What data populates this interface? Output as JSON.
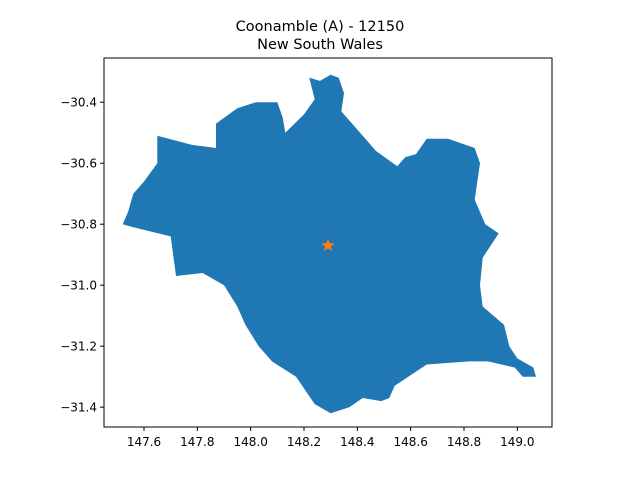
{
  "chart_data": {
    "type": "map",
    "title_line1": "Coonamble (A) - 12150",
    "title_line2": "New South Wales",
    "xlabel": "",
    "ylabel": "",
    "xlim": [
      147.45,
      149.13
    ],
    "ylim": [
      -31.465,
      -30.255
    ],
    "x_ticks": [
      147.6,
      147.8,
      148.0,
      148.2,
      148.4,
      148.6,
      148.8,
      149.0
    ],
    "x_tick_labels": [
      "147.6",
      "147.8",
      "148.0",
      "148.2",
      "148.4",
      "148.6",
      "148.8",
      "149.0"
    ],
    "y_ticks": [
      -30.4,
      -30.6,
      -30.8,
      -31.0,
      -31.2,
      -31.4
    ],
    "y_tick_labels": [
      "−30.4",
      "−30.6",
      "−30.8",
      "−31.0",
      "−31.2",
      "−31.4"
    ],
    "grid": false,
    "region_color": "#1f77b4",
    "marker_color": "#ff7f0e",
    "marker": {
      "symbol": "star",
      "lon": 148.29,
      "lat": -30.87
    },
    "boundary": [
      [
        148.22,
        -30.32
      ],
      [
        148.26,
        -30.33
      ],
      [
        148.3,
        -30.31
      ],
      [
        148.33,
        -30.32
      ],
      [
        148.35,
        -30.37
      ],
      [
        148.34,
        -30.43
      ],
      [
        148.37,
        -30.46
      ],
      [
        148.42,
        -30.51
      ],
      [
        148.47,
        -30.56
      ],
      [
        148.55,
        -30.61
      ],
      [
        148.58,
        -30.58
      ],
      [
        148.62,
        -30.57
      ],
      [
        148.66,
        -30.52
      ],
      [
        148.74,
        -30.52
      ],
      [
        148.84,
        -30.55
      ],
      [
        148.86,
        -30.6
      ],
      [
        148.84,
        -30.72
      ],
      [
        148.88,
        -30.8
      ],
      [
        148.93,
        -30.83
      ],
      [
        148.87,
        -30.91
      ],
      [
        148.86,
        -31.0
      ],
      [
        148.87,
        -31.07
      ],
      [
        148.95,
        -31.13
      ],
      [
        148.97,
        -31.2
      ],
      [
        149.0,
        -31.24
      ],
      [
        149.06,
        -31.27
      ],
      [
        149.07,
        -31.3
      ],
      [
        149.02,
        -31.3
      ],
      [
        148.99,
        -31.27
      ],
      [
        148.89,
        -31.25
      ],
      [
        148.82,
        -31.25
      ],
      [
        148.66,
        -31.26
      ],
      [
        148.54,
        -31.33
      ],
      [
        148.52,
        -31.37
      ],
      [
        148.49,
        -31.38
      ],
      [
        148.42,
        -31.37
      ],
      [
        148.37,
        -31.4
      ],
      [
        148.3,
        -31.42
      ],
      [
        148.24,
        -31.39
      ],
      [
        148.17,
        -31.3
      ],
      [
        148.08,
        -31.25
      ],
      [
        148.03,
        -31.2
      ],
      [
        147.98,
        -31.13
      ],
      [
        147.95,
        -31.07
      ],
      [
        147.9,
        -31.0
      ],
      [
        147.82,
        -30.96
      ],
      [
        147.72,
        -30.97
      ],
      [
        147.7,
        -30.84
      ],
      [
        147.56,
        -30.81
      ],
      [
        147.52,
        -30.8
      ],
      [
        147.54,
        -30.76
      ],
      [
        147.56,
        -30.7
      ],
      [
        147.6,
        -30.66
      ],
      [
        147.65,
        -30.6
      ],
      [
        147.65,
        -30.51
      ],
      [
        147.78,
        -30.54
      ],
      [
        147.87,
        -30.55
      ],
      [
        147.87,
        -30.47
      ],
      [
        147.95,
        -30.42
      ],
      [
        148.02,
        -30.4
      ],
      [
        148.1,
        -30.4
      ],
      [
        148.12,
        -30.45
      ],
      [
        148.13,
        -30.5
      ],
      [
        148.2,
        -30.44
      ],
      [
        148.24,
        -30.39
      ]
    ]
  }
}
